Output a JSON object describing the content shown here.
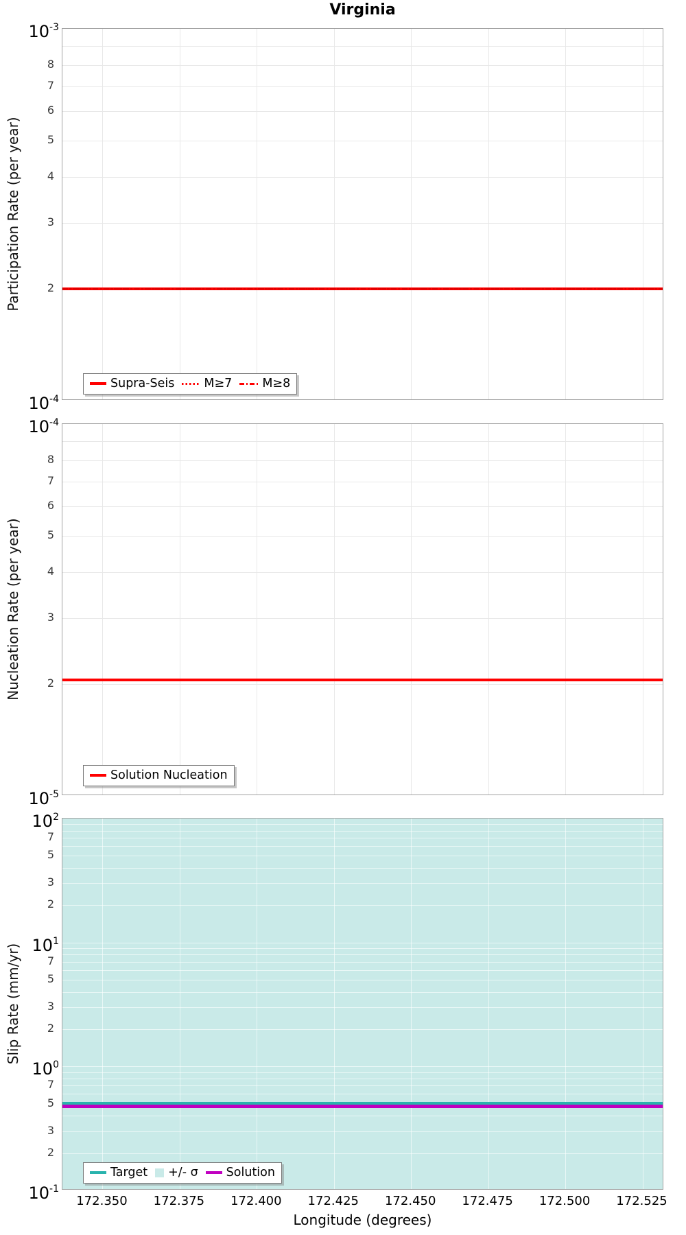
{
  "title": "Virginia",
  "x_axis": {
    "label": "Longitude (degrees)",
    "tick_labels": [
      "172.350",
      "172.375",
      "172.400",
      "172.425",
      "172.450",
      "172.475",
      "172.500",
      "172.525"
    ],
    "tick_values": [
      172.35,
      172.375,
      172.4,
      172.425,
      172.45,
      172.475,
      172.5,
      172.525
    ],
    "xlim": [
      172.337,
      172.532
    ]
  },
  "colors": {
    "red": "#ff0000",
    "red_dark": "#dd0000",
    "teal": "#29b3ad",
    "magenta": "#c000c0",
    "sigma_band": "#c9eae8",
    "grid": "#e8e8e8",
    "grid_on_band": "rgba(255,255,255,0.6)",
    "panel_border": "#a0a0a0"
  },
  "chart_data": [
    {
      "id": "participation",
      "type": "line",
      "ylabel": "Participation Rate (per year)",
      "yscale": "log",
      "ylim": [
        0.0001,
        0.001
      ],
      "decade_exponents": [
        -3,
        -4
      ],
      "minor_tick_labels": [
        8,
        7,
        6,
        5,
        4,
        3,
        2
      ],
      "minor_grid_values": [
        9,
        8,
        7,
        6,
        5,
        4,
        3,
        2
      ],
      "series": [
        {
          "name": "Supra-Seis",
          "style": "solid",
          "width": 4,
          "color": "#ff0000",
          "y": 0.0002
        },
        {
          "name": "M≥7",
          "style": "dotted",
          "width": 2,
          "color": "#dd0000",
          "y": 0.0002
        },
        {
          "name": "M≥8",
          "style": "dashdot",
          "width": 2,
          "color": "#dd0000",
          "y": 0.0002
        }
      ],
      "legend": [
        {
          "label": "Supra-Seis",
          "swatch": "solid",
          "color": "#ff0000"
        },
        {
          "label": "M≥7",
          "swatch": "dotted",
          "color": "#ff0000"
        },
        {
          "label": "M≥8",
          "swatch": "dashdot",
          "color": "#ff0000"
        }
      ]
    },
    {
      "id": "nucleation",
      "type": "line",
      "ylabel": "Nucleation Rate (per year)",
      "yscale": "log",
      "ylim": [
        1e-05,
        0.0001
      ],
      "decade_exponents": [
        -4,
        -5
      ],
      "minor_tick_labels": [
        8,
        7,
        6,
        5,
        4,
        3,
        2
      ],
      "minor_grid_values": [
        9,
        8,
        7,
        6,
        5,
        4,
        3,
        2
      ],
      "series": [
        {
          "name": "Solution Nucleation",
          "style": "solid",
          "width": 4,
          "color": "#ff0000",
          "y": 2.05e-05
        }
      ],
      "legend": [
        {
          "label": "Solution Nucleation",
          "swatch": "solid",
          "color": "#ff0000"
        }
      ]
    },
    {
      "id": "slip-rate",
      "type": "line",
      "ylabel": "Slip Rate (mm/yr)",
      "yscale": "log",
      "ylim": [
        0.1,
        100
      ],
      "decade_exponents": [
        2,
        1,
        0,
        -1
      ],
      "minor_tick_labels": [
        7,
        5,
        3,
        2
      ],
      "minor_grid_values": [
        9,
        8,
        7,
        6,
        5,
        4,
        3,
        2
      ],
      "band": {
        "label": "+/- σ",
        "lo": 0.1,
        "hi": 100,
        "color": "#c9eae8"
      },
      "series": [
        {
          "name": "Target",
          "style": "solid",
          "width": 5,
          "color": "#29b3ad",
          "y": 0.5
        },
        {
          "name": "Solution",
          "style": "solid",
          "width": 4.5,
          "color": "#c000c0",
          "y": 0.475
        }
      ],
      "legend": [
        {
          "label": "Target",
          "swatch": "solid",
          "color": "#29b3ad"
        },
        {
          "label": "+/- σ",
          "swatch": "square",
          "color": "#c9eae8"
        },
        {
          "label": "Solution",
          "swatch": "solid",
          "color": "#c000c0"
        }
      ]
    }
  ]
}
